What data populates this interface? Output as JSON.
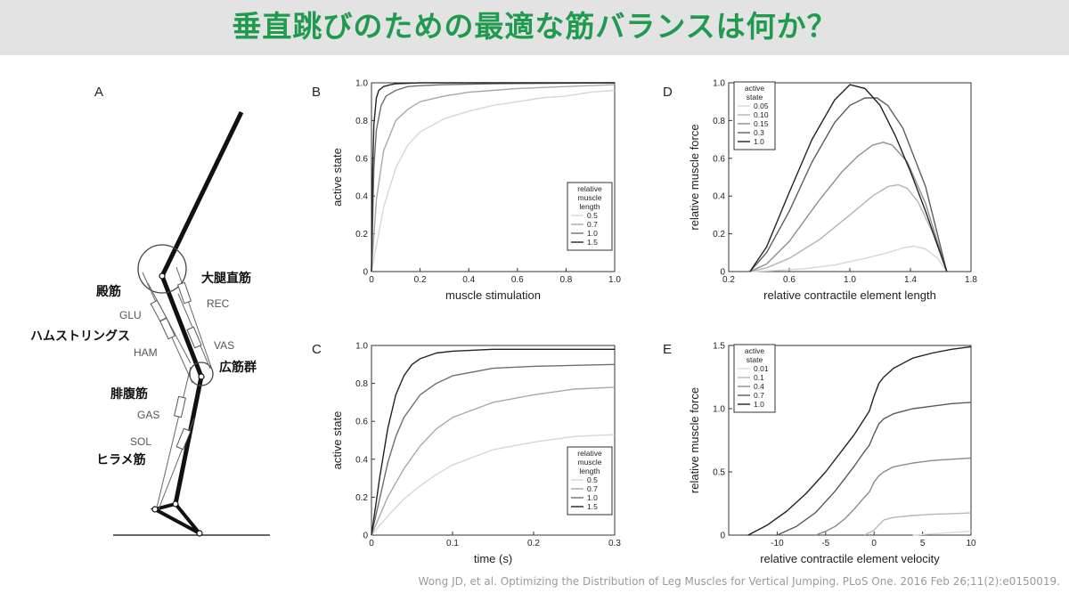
{
  "title": "垂直跳びのための最適な筋バランスは何か？",
  "citation": "Wong JD, et al. Optimizing the Distribution of Leg Muscles for Vertical Jumping. PLoS One. 2016 Feb 26;11(2):e0150019.",
  "colors": {
    "title_green": "#1f9a4f",
    "title_bar": "#e3e3e3",
    "citation": "#9a9a9a"
  },
  "leg_diagram": {
    "panel": "A",
    "muscle_abbreviations": [
      "REC",
      "GLU",
      "VAS",
      "HAM",
      "GAS",
      "SOL"
    ],
    "japanese_labels": {
      "glu": "殿筋",
      "rec": "大腿直筋",
      "ham": "ハムストリングス",
      "vas": "広筋群",
      "gas": "腓腹筋",
      "sol": "ヒラメ筋"
    }
  },
  "chart_data": [
    {
      "panel": "B",
      "type": "line",
      "xlabel": "muscle stimulation",
      "ylabel": "active state",
      "xlim": [
        0,
        1.0
      ],
      "ylim": [
        0,
        1.0
      ],
      "xticks": [
        "0",
        "0.2",
        "0.4",
        "0.6",
        "0.8",
        "1.0"
      ],
      "yticks": [
        "0",
        "0.2",
        "0.4",
        "0.6",
        "0.8",
        "1.0"
      ],
      "legend": {
        "title": [
          "relative",
          "muscle",
          "length"
        ],
        "placement": "bottom-right"
      },
      "series": [
        {
          "name": "0.5",
          "color": "#d6d6d6",
          "x": [
            0,
            0.05,
            0.1,
            0.15,
            0.2,
            0.3,
            0.4,
            0.5,
            0.6,
            0.7,
            0.8,
            0.9,
            1.0
          ],
          "y": [
            0,
            0.34,
            0.55,
            0.67,
            0.74,
            0.81,
            0.85,
            0.88,
            0.9,
            0.92,
            0.93,
            0.95,
            0.96
          ]
        },
        {
          "name": "0.7",
          "color": "#a8a8a8",
          "x": [
            0,
            0.02,
            0.05,
            0.1,
            0.15,
            0.2,
            0.3,
            0.4,
            0.5,
            0.6,
            0.8,
            1.0
          ],
          "y": [
            0,
            0.38,
            0.64,
            0.8,
            0.86,
            0.9,
            0.93,
            0.95,
            0.96,
            0.97,
            0.98,
            0.99
          ]
        },
        {
          "name": "1.0",
          "color": "#6e6e6e",
          "x": [
            0,
            0.01,
            0.02,
            0.04,
            0.06,
            0.1,
            0.15,
            0.2,
            0.3,
            0.5,
            1.0
          ],
          "y": [
            0,
            0.55,
            0.75,
            0.88,
            0.93,
            0.96,
            0.98,
            0.985,
            0.99,
            0.995,
            1.0
          ]
        },
        {
          "name": "1.5",
          "color": "#222222",
          "x": [
            0,
            0.005,
            0.01,
            0.02,
            0.03,
            0.05,
            0.08,
            0.1,
            0.2,
            0.5,
            1.0
          ],
          "y": [
            0,
            0.55,
            0.78,
            0.92,
            0.96,
            0.98,
            0.99,
            0.995,
            1.0,
            1.0,
            1.0
          ]
        }
      ]
    },
    {
      "panel": "C",
      "type": "line",
      "xlabel": "time (s)",
      "ylabel": "active state",
      "xlim": [
        0,
        0.3
      ],
      "ylim": [
        0,
        1.0
      ],
      "xticks": [
        "0",
        "0.1",
        "0.2",
        "0.3"
      ],
      "yticks": [
        "0",
        "0.2",
        "0.4",
        "0.6",
        "0.8",
        "1.0"
      ],
      "legend": {
        "title": [
          "relative",
          "muscle",
          "length"
        ],
        "placement": "bottom-right"
      },
      "series": [
        {
          "name": "0.5",
          "color": "#d6d6d6",
          "x": [
            0,
            0.02,
            0.04,
            0.06,
            0.08,
            0.1,
            0.15,
            0.2,
            0.25,
            0.3
          ],
          "y": [
            0,
            0.1,
            0.19,
            0.26,
            0.32,
            0.37,
            0.45,
            0.49,
            0.52,
            0.53
          ]
        },
        {
          "name": "0.7",
          "color": "#a8a8a8",
          "x": [
            0,
            0.01,
            0.02,
            0.04,
            0.06,
            0.08,
            0.1,
            0.15,
            0.2,
            0.25,
            0.3
          ],
          "y": [
            0,
            0.1,
            0.2,
            0.35,
            0.47,
            0.56,
            0.62,
            0.7,
            0.74,
            0.77,
            0.78
          ]
        },
        {
          "name": "1.0",
          "color": "#6e6e6e",
          "x": [
            0,
            0.01,
            0.02,
            0.03,
            0.04,
            0.06,
            0.08,
            0.1,
            0.15,
            0.2,
            0.3
          ],
          "y": [
            0,
            0.19,
            0.38,
            0.52,
            0.62,
            0.74,
            0.8,
            0.84,
            0.88,
            0.89,
            0.9
          ]
        },
        {
          "name": "1.5",
          "color": "#222222",
          "x": [
            0,
            0.005,
            0.01,
            0.02,
            0.03,
            0.04,
            0.05,
            0.06,
            0.08,
            0.1,
            0.15,
            0.2,
            0.3
          ],
          "y": [
            0,
            0.15,
            0.3,
            0.56,
            0.74,
            0.84,
            0.9,
            0.93,
            0.96,
            0.97,
            0.98,
            0.98,
            0.98
          ]
        }
      ]
    },
    {
      "panel": "D",
      "type": "line",
      "xlabel": "relative contractile element length",
      "ylabel": "relative muscle force",
      "xlim": [
        0.2,
        1.8
      ],
      "ylim": [
        0,
        1.0
      ],
      "xticks": [
        "0.2",
        "0.6",
        "1.0",
        "1.4",
        "1.8"
      ],
      "yticks": [
        "0",
        "0.2",
        "0.4",
        "0.6",
        "0.8",
        "1.0"
      ],
      "legend": {
        "title": [
          "active",
          "state"
        ],
        "placement": "top-left"
      },
      "series": [
        {
          "name": "0.05",
          "color": "#d6d6d6",
          "x": [
            0.34,
            0.5,
            0.7,
            0.9,
            1.1,
            1.25,
            1.35,
            1.42,
            1.5,
            1.58,
            1.64
          ],
          "y": [
            0,
            0.005,
            0.015,
            0.035,
            0.07,
            0.1,
            0.125,
            0.135,
            0.12,
            0.07,
            0.0
          ]
        },
        {
          "name": "0.10",
          "color": "#b4b4b4",
          "x": [
            0.34,
            0.45,
            0.6,
            0.8,
            1.0,
            1.15,
            1.25,
            1.32,
            1.38,
            1.45,
            1.55,
            1.64
          ],
          "y": [
            0,
            0.02,
            0.07,
            0.17,
            0.3,
            0.4,
            0.45,
            0.46,
            0.44,
            0.37,
            0.2,
            0.0
          ]
        },
        {
          "name": "0.15",
          "color": "#8e8e8e",
          "x": [
            0.34,
            0.45,
            0.6,
            0.8,
            0.95,
            1.05,
            1.15,
            1.22,
            1.28,
            1.38,
            1.5,
            1.64
          ],
          "y": [
            0,
            0.04,
            0.16,
            0.38,
            0.53,
            0.61,
            0.67,
            0.685,
            0.67,
            0.58,
            0.36,
            0.0
          ]
        },
        {
          "name": "0.3",
          "color": "#5e5e5e",
          "x": [
            0.34,
            0.45,
            0.6,
            0.75,
            0.9,
            1.0,
            1.1,
            1.18,
            1.25,
            1.35,
            1.5,
            1.64
          ],
          "y": [
            0,
            0.1,
            0.32,
            0.58,
            0.79,
            0.88,
            0.92,
            0.92,
            0.88,
            0.76,
            0.45,
            0.0
          ]
        },
        {
          "name": "1.0",
          "color": "#222222",
          "x": [
            0.34,
            0.45,
            0.6,
            0.75,
            0.9,
            1.0,
            1.1,
            1.2,
            1.3,
            1.4,
            1.5,
            1.64
          ],
          "y": [
            0,
            0.13,
            0.42,
            0.7,
            0.91,
            0.99,
            0.97,
            0.88,
            0.72,
            0.53,
            0.32,
            0.0
          ]
        }
      ]
    },
    {
      "panel": "E",
      "type": "line",
      "xlabel": "relative contractile element velocity",
      "ylabel": "relative muscle force",
      "xlim": [
        -15,
        10
      ],
      "ylim": [
        0,
        1.5
      ],
      "xticks": [
        "-10",
        "-5",
        "0",
        "5",
        "10"
      ],
      "yticks": [
        "0",
        "0.5",
        "1.0",
        "1.5"
      ],
      "legend": {
        "title": [
          "active",
          "state"
        ],
        "placement": "top-left"
      },
      "series": [
        {
          "name": "0.01",
          "color": "#dcdcdc",
          "x": [
            4,
            6,
            8,
            10
          ],
          "y": [
            0,
            0.01,
            0.02,
            0.03
          ]
        },
        {
          "name": "0.1",
          "color": "#b8b8b8",
          "x": [
            -1,
            -0.5,
            0,
            0.5,
            1,
            2,
            4,
            6,
            8,
            10
          ],
          "y": [
            0,
            0.02,
            0.04,
            0.08,
            0.12,
            0.14,
            0.155,
            0.165,
            0.17,
            0.175
          ]
        },
        {
          "name": "0.4",
          "color": "#8a8a8a",
          "x": [
            -6,
            -5,
            -4,
            -3,
            -2,
            -1,
            -0.5,
            0,
            0.5,
            1,
            2,
            4,
            6,
            8,
            10
          ],
          "y": [
            0,
            0.03,
            0.07,
            0.13,
            0.21,
            0.3,
            0.34,
            0.42,
            0.47,
            0.5,
            0.54,
            0.57,
            0.59,
            0.6,
            0.61
          ]
        },
        {
          "name": "0.7",
          "color": "#5a5a5a",
          "x": [
            -10,
            -8,
            -6,
            -4,
            -2,
            -1,
            -0.5,
            0,
            0.5,
            1,
            2,
            4,
            6,
            8,
            10
          ],
          "y": [
            0,
            0.07,
            0.18,
            0.35,
            0.55,
            0.66,
            0.71,
            0.8,
            0.88,
            0.92,
            0.96,
            1.0,
            1.02,
            1.04,
            1.05
          ]
        },
        {
          "name": "1.0",
          "color": "#222222",
          "x": [
            -13,
            -11,
            -9,
            -7,
            -5,
            -3,
            -2,
            -1,
            -0.5,
            0,
            0.5,
            1,
            2,
            4,
            6,
            8,
            10
          ],
          "y": [
            0,
            0.08,
            0.19,
            0.33,
            0.5,
            0.7,
            0.8,
            0.92,
            0.98,
            1.1,
            1.2,
            1.25,
            1.32,
            1.4,
            1.44,
            1.47,
            1.49
          ]
        }
      ]
    }
  ]
}
